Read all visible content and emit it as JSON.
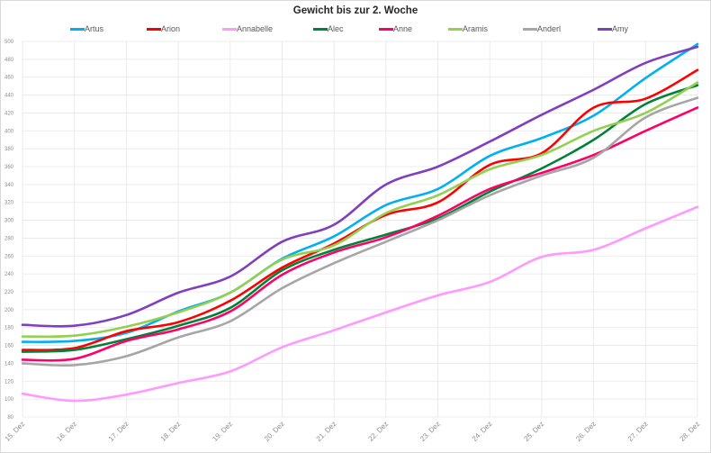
{
  "chart": {
    "title": "Gewicht bis zur 2. Woche"
  },
  "chart_data": {
    "type": "line",
    "title": "Gewicht bis zur 2. Woche",
    "xlabel": "",
    "ylabel": "",
    "ylim": [
      80,
      500
    ],
    "ytick_step": 20,
    "yticks": [
      80,
      100,
      120,
      140,
      160,
      180,
      200,
      220,
      240,
      260,
      280,
      300,
      320,
      340,
      360,
      380,
      400,
      420,
      440,
      460,
      480,
      500
    ],
    "grid": true,
    "smooth": true,
    "legend_position": "top",
    "categories": [
      "15. Dez",
      "16. Dez",
      "17. Dez",
      "18. Dez",
      "19. Dez",
      "20. Dez",
      "21. Dez",
      "22. Dez",
      "23. Dez",
      "24. Dez",
      "25. Dez",
      "26. Dez",
      "27. Dez",
      "28. Dez"
    ],
    "series": [
      {
        "name": "Artus",
        "color": "#00b0f0",
        "values": [
          164,
          165,
          174,
          198,
          219,
          257,
          282,
          317,
          335,
          372,
          392,
          417,
          459,
          497
        ]
      },
      {
        "name": "Arion",
        "color": "#ff0000",
        "values": [
          155,
          157,
          176,
          186,
          210,
          247,
          274,
          306,
          320,
          362,
          375,
          426,
          436,
          468
        ]
      },
      {
        "name": "Annabelle",
        "color": "#ff99ff",
        "values": [
          106,
          98,
          105,
          118,
          131,
          158,
          177,
          197,
          216,
          231,
          259,
          267,
          291,
          315
        ]
      },
      {
        "name": "Alec",
        "color": "#00823b",
        "values": [
          153,
          155,
          167,
          182,
          202,
          244,
          267,
          284,
          302,
          332,
          358,
          390,
          430,
          451
        ]
      },
      {
        "name": "Anne",
        "color": "#ff0066",
        "values": [
          144,
          145,
          165,
          178,
          198,
          239,
          264,
          281,
          305,
          335,
          353,
          373,
          400,
          426
        ]
      },
      {
        "name": "Aramis",
        "color": "#92d050",
        "values": [
          170,
          171,
          181,
          197,
          219,
          256,
          272,
          308,
          328,
          357,
          373,
          400,
          420,
          454
        ]
      },
      {
        "name": "Anderl",
        "color": "#a6a6a6",
        "values": [
          140,
          138,
          148,
          169,
          187,
          224,
          252,
          276,
          300,
          328,
          350,
          370,
          415,
          437
        ]
      },
      {
        "name": "Amy",
        "color": "#7f3fbf",
        "values": [
          183,
          182,
          194,
          219,
          237,
          276,
          295,
          340,
          360,
          388,
          418,
          446,
          476,
          494
        ]
      }
    ]
  }
}
